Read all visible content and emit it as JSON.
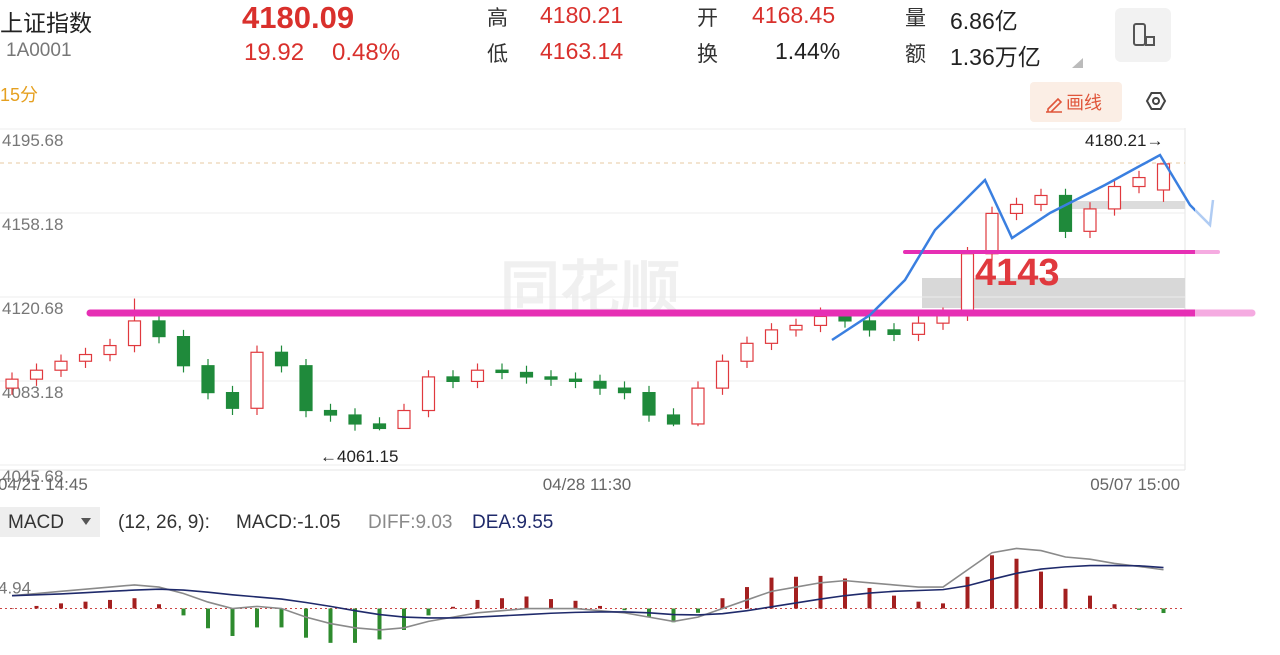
{
  "header": {
    "name": "上证指数",
    "code": "1A0001",
    "price": "4180.09",
    "change": "19.92",
    "change_pct": "0.48%",
    "stats": [
      {
        "label": "高",
        "value": "4180.21",
        "color": "#d9302c"
      },
      {
        "label": "低",
        "value": "4163.14",
        "color": "#d9302c"
      },
      {
        "label": "开",
        "value": "4168.45",
        "color": "#d9302c"
      },
      {
        "label": "换",
        "value": "1.44%",
        "color": "#222222"
      },
      {
        "label": "量",
        "value": "6.86亿",
        "color": "#222222"
      },
      {
        "label": "额",
        "value": "1.36万亿",
        "color": "#222222"
      }
    ]
  },
  "toolbar": {
    "period": "15分",
    "draw": "画线"
  },
  "chart_data": [
    {
      "type": "candlestick",
      "watermark": "同花顺",
      "categories": [
        "04/21 14:45",
        null,
        null,
        null,
        null,
        null,
        null,
        null,
        null,
        null,
        null,
        null,
        null,
        null,
        null,
        null,
        null,
        null,
        null,
        null,
        null,
        null,
        "04/28 11:30",
        null,
        null,
        null,
        null,
        null,
        null,
        null,
        null,
        null,
        null,
        null,
        null,
        null,
        null,
        null,
        null,
        null,
        null,
        null,
        null,
        null,
        null,
        null,
        null,
        "05/07 15:00"
      ],
      "open": [
        4080,
        4084,
        4088,
        4092,
        4095,
        4099,
        4110,
        4103,
        4090,
        4078,
        4071,
        4096,
        4090,
        4070,
        4068,
        4064,
        4062,
        4070,
        4085,
        4083,
        4088,
        4087,
        4085,
        4084,
        4083,
        4080,
        4078,
        4068,
        4064,
        4080,
        4092,
        4100,
        4106,
        4108,
        4112,
        4110,
        4106,
        4104,
        4109,
        4113,
        4140,
        4158,
        4162,
        4166,
        4150,
        4160,
        4170,
        4168.45
      ],
      "high": [
        4087,
        4091,
        4095,
        4098,
        4102,
        4120,
        4113,
        4106,
        4093,
        4081,
        4099,
        4099,
        4093,
        4073,
        4071,
        4067,
        4073,
        4088,
        4088,
        4091,
        4091,
        4090,
        4088,
        4087,
        4086,
        4083,
        4081,
        4071,
        4083,
        4095,
        4103,
        4109,
        4111,
        4116,
        4115,
        4113,
        4109,
        4112,
        4116,
        4143,
        4161,
        4165,
        4169,
        4169,
        4163,
        4173,
        4177,
        4180.21
      ],
      "low": [
        4077,
        4081,
        4085,
        4089,
        4092,
        4096,
        4100,
        4087,
        4075,
        4068,
        4068,
        4087,
        4067,
        4065,
        4061,
        4061.15,
        4062,
        4067,
        4080,
        4080,
        4084,
        4082,
        4081,
        4080,
        4077,
        4075,
        4065,
        4063,
        4063,
        4077,
        4089,
        4097,
        4103,
        4105,
        4107,
        4103,
        4101,
        4101,
        4106,
        4110,
        4137,
        4155,
        4159,
        4147,
        4147,
        4157,
        4167,
        4163.14
      ],
      "close": [
        4084,
        4088,
        4092,
        4095,
        4099,
        4110,
        4103,
        4090,
        4078,
        4071,
        4096,
        4090,
        4070,
        4068,
        4064,
        4062,
        4070,
        4085,
        4083,
        4088,
        4087,
        4085,
        4084,
        4083,
        4080,
        4078,
        4068,
        4064,
        4080,
        4092,
        4100,
        4106,
        4108,
        4112,
        4110,
        4106,
        4104,
        4109,
        4113,
        4140,
        4158,
        4162,
        4166,
        4150,
        4160,
        4170,
        4174,
        4180.09
      ],
      "up_color": "#e0393e",
      "down_color": "#1f8a3b",
      "ylim": [
        4045.68,
        4195.68
      ],
      "yticks": [
        4195.68,
        4158.18,
        4120.68,
        4083.18,
        4045.68
      ],
      "grid": true,
      "annotations": [
        "4180.21→",
        "←4061.15",
        "4143"
      ]
    },
    {
      "type": "macd",
      "indicator": "MACD",
      "params": "(12, 26, 9):",
      "series": [
        {
          "name": "MACD:-1.05",
          "color": "#333333",
          "values": [
            0,
            0.6,
            1.2,
            1.6,
            2,
            2.4,
            1,
            -1.6,
            -4.6,
            -6.4,
            -4.4,
            -4.4,
            -6.8,
            -8,
            -8,
            -7.2,
            -5,
            -1.6,
            0.4,
            2,
            2.4,
            2.8,
            2.2,
            1.8,
            0.6,
            -0.4,
            -2,
            -3.2,
            -1,
            2.4,
            5,
            7.2,
            7.4,
            7.6,
            7,
            4.8,
            3,
            1.6,
            1.2,
            7.4,
            12.4,
            11.6,
            8.6,
            4.6,
            3,
            1,
            -0.3,
            -1.05
          ]
        },
        {
          "name": "DIFF:9.03",
          "color": "#8a8a8a",
          "values": [
            3,
            3.5,
            4,
            4.5,
            5,
            5.5,
            5,
            3.5,
            1.5,
            0,
            0.5,
            0,
            -2,
            -3.5,
            -4.5,
            -5,
            -4.5,
            -3,
            -2,
            -1,
            -0.5,
            0,
            0,
            0,
            -0.5,
            -1,
            -2,
            -3,
            -2,
            0,
            2,
            4,
            5,
            6,
            6.5,
            6,
            5.5,
            5,
            5,
            9,
            13,
            14,
            13.5,
            12,
            11.5,
            10.5,
            9.8,
            9.03
          ]
        },
        {
          "name": "DEA:9.55",
          "color": "#1f2a6b",
          "values": [
            3,
            3.2,
            3.4,
            3.7,
            4,
            4.3,
            4.5,
            4.3,
            3.8,
            3.2,
            2.7,
            2.2,
            1.4,
            0.5,
            -0.5,
            -1.4,
            -2,
            -2.2,
            -2.2,
            -2,
            -1.7,
            -1.4,
            -1.1,
            -0.9,
            -0.8,
            -0.8,
            -1,
            -1.4,
            -1.5,
            -1.2,
            -0.5,
            0.4,
            1.3,
            2.2,
            3,
            3.6,
            4,
            4.2,
            4.4,
            5.3,
            6.8,
            8.2,
            9.2,
            9.7,
            10,
            10,
            9.95,
            9.55
          ]
        }
      ],
      "up_color": "#a31f1f",
      "down_color": "#2e8b2e",
      "ylim": [
        -8.5,
        14.8
      ],
      "yticks": [
        4.94
      ]
    }
  ]
}
